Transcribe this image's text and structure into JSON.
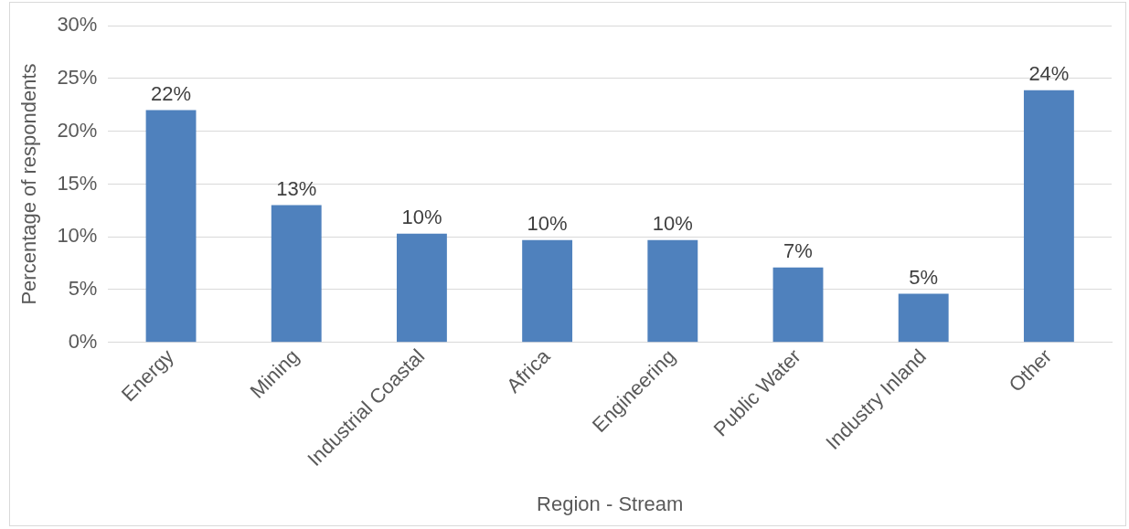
{
  "chart_data": {
    "type": "bar",
    "xlabel": "Region - Stream",
    "ylabel": "Percentage of respondents",
    "categories": [
      "Energy",
      "Mining",
      "Industrial Coastal",
      "Africa",
      "Engineering",
      "Public Water",
      "Industry Inland",
      "Other"
    ],
    "values": [
      22,
      13,
      10.3,
      9.7,
      9.7,
      7.1,
      4.6,
      23.9
    ],
    "value_labels": [
      "22%",
      "13%",
      "10%",
      "10%",
      "10%",
      "7%",
      "5%",
      "24%"
    ],
    "color": "#4f81bd",
    "ylim": [
      0,
      30
    ],
    "yticks": [
      {
        "value": 0,
        "label": "0%"
      },
      {
        "value": 5,
        "label": "5%"
      },
      {
        "value": 10,
        "label": "10%"
      },
      {
        "value": 15,
        "label": "15%"
      },
      {
        "value": 20,
        "label": "20%"
      },
      {
        "value": 25,
        "label": "25%"
      },
      {
        "value": 30,
        "label": "30%"
      }
    ],
    "grid": "y",
    "legend": false
  }
}
